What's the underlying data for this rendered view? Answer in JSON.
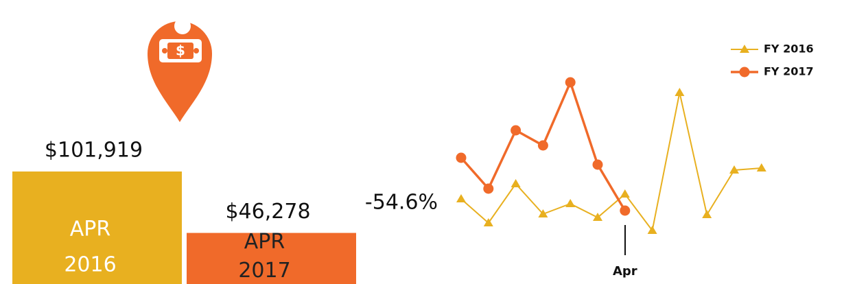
{
  "kpi": {
    "bars": [
      {
        "month": "APR",
        "year": "2016",
        "value": 101919,
        "value_label": "$101,919",
        "color": "#e8b020",
        "text_color": "#ffffff"
      },
      {
        "month": "APR",
        "year": "2017",
        "value": 46278,
        "value_label": "$46,278",
        "color": "#f06a2a",
        "text_color": "#222222"
      }
    ],
    "change": "-54.6%"
  },
  "chart_data": {
    "type": "line",
    "categories": [
      null,
      null,
      null,
      null,
      null,
      null,
      "Apr",
      null,
      null,
      null,
      null,
      null
    ],
    "series": [
      {
        "name": "FY 2016",
        "color": "#e8b020",
        "marker": "triangle",
        "values": [
          55,
          20,
          77,
          33,
          48,
          28,
          62,
          9,
          210,
          32,
          97,
          100
        ]
      },
      {
        "name": "FY 2017",
        "color": "#f06a2a",
        "marker": "circle",
        "values": [
          115,
          70,
          155,
          133,
          225,
          105,
          38,
          null,
          null,
          null,
          null,
          null
        ]
      }
    ],
    "ylim": [
      0,
      240
    ],
    "legend": "top-right"
  }
}
